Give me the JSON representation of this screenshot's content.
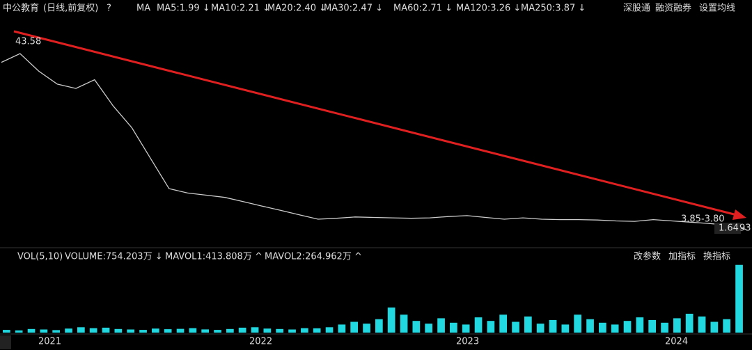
{
  "header": {
    "stock": "中公教育",
    "mode": "(日线,前复权)",
    "help": "?",
    "ma": "MA",
    "ma_items": [
      {
        "text": "MA5:1.99 ↓",
        "color": "#ffffff"
      },
      {
        "text": "MA10:2.21 ↓",
        "color": "#e8e000"
      },
      {
        "text": "MA20:2.40 ↓",
        "color": "#ff33ff"
      },
      {
        "text": "MA30:2.47 ↓",
        "color": "#33dd33"
      },
      {
        "text": "MA60:2.71 ↓",
        "color": "#dddddd"
      },
      {
        "text": "MA120:3.26 ↓",
        "color": "#33cccc"
      },
      {
        "text": "MA250:3.87 ↓",
        "color": "#e8d060"
      }
    ],
    "right": [
      "深股通",
      "融资融券",
      "设置均线"
    ]
  },
  "chart_data": {
    "type": "line",
    "color": "#cccccc",
    "ylim": [
      0,
      46
    ],
    "values": [
      40,
      42,
      38,
      35,
      34,
      36,
      30,
      25,
      18,
      11,
      10,
      9.5,
      9,
      8,
      7,
      6,
      5,
      4,
      4.2,
      4.5,
      4.4,
      4.3,
      4.2,
      4.3,
      4.6,
      4.8,
      4.4,
      4.0,
      4.3,
      4.0,
      3.9,
      3.9,
      3.8,
      3.6,
      3.5,
      3.9,
      3.6,
      3.3,
      3.0,
      2.6,
      1.64
    ],
    "high_label": "43.58",
    "range_label": "3.85-3.80",
    "last_label": "1.64",
    "faded_label": "93",
    "x_labels": [
      "2021",
      "2022",
      "2023",
      "2024"
    ]
  },
  "volume": {
    "title": "VOL(5,10)",
    "volume": "VOLUME:754.203万 ↓",
    "mavol1": "MAVOL1:413.808万 ^",
    "mavol2": "MAVOL2:264.962万 ^",
    "buttons": [
      "改参数",
      "加指标",
      "换指标"
    ],
    "color": "#22d8e0",
    "ylim": [
      0,
      760
    ],
    "values": [
      30,
      25,
      40,
      35,
      28,
      45,
      60,
      50,
      55,
      40,
      35,
      30,
      45,
      38,
      42,
      50,
      36,
      30,
      40,
      55,
      60,
      45,
      40,
      35,
      50,
      48,
      60,
      90,
      120,
      100,
      150,
      280,
      200,
      130,
      100,
      160,
      110,
      90,
      170,
      130,
      200,
      120,
      180,
      100,
      140,
      90,
      200,
      150,
      110,
      90,
      130,
      170,
      140,
      110,
      160,
      210,
      180,
      120,
      150,
      754.203
    ]
  }
}
